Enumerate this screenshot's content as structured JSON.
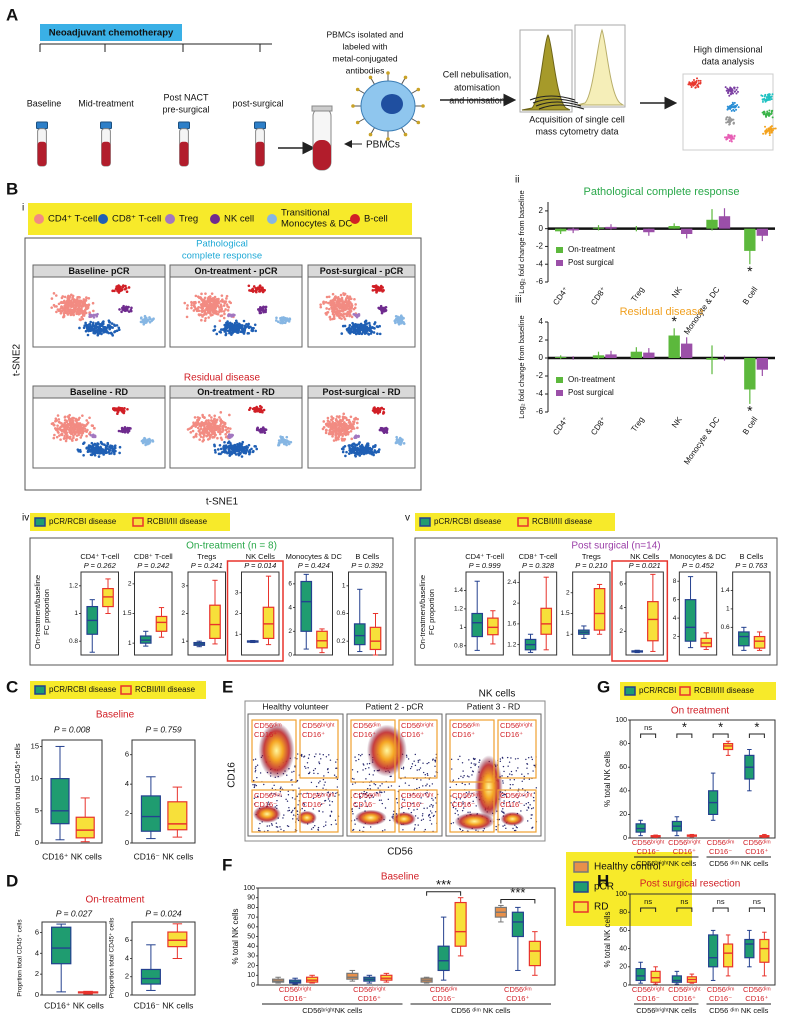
{
  "A": {
    "label": "A",
    "treatment": "Neoadjuvant chemotherapy",
    "timepoints": [
      "Baseline",
      "Mid-treatment",
      "post-surgical"
    ],
    "post_nact": [
      "Post NACT",
      "pre-surgical"
    ],
    "isolation": [
      "PBMCs isolated and",
      "labeled with",
      "metal-conjugated",
      "antibodies"
    ],
    "pbmcs": "PBMCs",
    "ionisation": [
      "Cell nebulisation,",
      "atomisation",
      "and ionisation"
    ],
    "acquisition": [
      "Acquisition of single cell",
      "mass cytometry data"
    ],
    "analysis": [
      "High dimensional",
      "data analysis"
    ]
  },
  "B": {
    "label": "B",
    "sub": "i",
    "legend": [
      {
        "name": "CD4⁺ T-cell",
        "color": "#f28b82"
      },
      {
        "name": "CD8⁺ T-cell",
        "color": "#1f5fb4"
      },
      {
        "name": "Treg",
        "color": "#a277c0"
      },
      {
        "name": "NK cell",
        "color": "#6f2b8e"
      },
      {
        "name": [
          "Transitional",
          "Monocytes & DC"
        ],
        "color": "#86b6e3"
      },
      {
        "name": "B-cell",
        "color": "#d11f26"
      }
    ],
    "pcr_heading": [
      "Pathological",
      "complete response"
    ],
    "pcr_plots": [
      "Baseline- pCR",
      "On-treatment - pCR",
      "Post-surgical - pCR"
    ],
    "rd_heading": "Residual disease",
    "rd_plots": [
      "Baseline  - RD",
      "On-treatment - RD",
      "Post-surgical - RD"
    ],
    "ylabel": "t-SNE2",
    "xlabel": "t-SNE1"
  },
  "B_ii": {
    "type": "bar",
    "label": "ii",
    "title": "Pathological complete response",
    "title_color": "#2aa84a",
    "ylabel": "Log₂ fold change from baseline",
    "categories": [
      "CD4⁺",
      "CD8⁺",
      "Treg",
      "NK",
      "Monocyte & DC",
      "B cell"
    ],
    "series": [
      {
        "name": "On-treatment",
        "color": "#5cb83c",
        "values": [
          -0.3,
          0.1,
          0,
          0.3,
          1,
          -2.5
        ],
        "errors": [
          0.3,
          0.3,
          0.3,
          0.3,
          1.2,
          1.5
        ]
      },
      {
        "name": "Post surgical",
        "color": "#9b4fa8",
        "values": [
          -0.2,
          0.2,
          -0.4,
          -0.6,
          1.4,
          -0.8
        ],
        "errors": [
          0.3,
          0.3,
          0.4,
          0.5,
          0.9,
          0.6
        ]
      }
    ],
    "ylim": [
      -6,
      3
    ],
    "yticks": [
      -6,
      -4,
      -2,
      0,
      2
    ],
    "annotations": [
      {
        "text": "*",
        "category": 5,
        "series": 0
      }
    ]
  },
  "B_iii": {
    "type": "bar",
    "label": "iii",
    "title": "Residual disease",
    "title_color": "#f0a020",
    "ylabel": "Log₂ fold change from baseline",
    "categories": [
      "CD4⁺",
      "CD8⁺",
      "Treg",
      "NK",
      "Monocyte & DC",
      "B cell"
    ],
    "series": [
      {
        "name": "On-treatment",
        "color": "#5cb83c",
        "values": [
          0.1,
          0.3,
          0.7,
          2.5,
          -0.2,
          -3.5
        ],
        "errors": [
          0.2,
          0.4,
          0.5,
          0.8,
          1.6,
          1.6
        ]
      },
      {
        "name": "Post surgical",
        "color": "#9b4fa8",
        "values": [
          0,
          0.4,
          0.6,
          1.6,
          0,
          -1.3
        ],
        "errors": [
          0.2,
          0.4,
          0.5,
          0.7,
          0.3,
          0.7
        ]
      }
    ],
    "ylim": [
      -6,
      4
    ],
    "yticks": [
      -6,
      -4,
      -2,
      0,
      2,
      4
    ],
    "annotations": [
      {
        "text": "*",
        "category": 3,
        "series": 0
      },
      {
        "text": "*",
        "category": 5,
        "series": 0
      }
    ]
  },
  "B_iv": {
    "label": "iv",
    "legend": [
      {
        "name": "pCR/RCBI disease",
        "color": "#1f9c70",
        "edge": "#24418f"
      },
      {
        "name": "RCBII/III disease",
        "color": "#f7e03a",
        "edge": "#e8332c"
      }
    ],
    "title": "On-treatment (n = 8)",
    "title_color": "#2aa84a",
    "ylabel": [
      "On-treatment/baseline",
      "FC proportion"
    ],
    "panels": [
      {
        "name": "CD4⁺ T-cell",
        "p": "P = 0.262",
        "ylim": [
          0.7,
          1.3
        ],
        "yticks": [
          0.8,
          1,
          1.2
        ],
        "boxes": [
          [
            0.72,
            0.85,
            0.95,
            1.05,
            1.1
          ],
          [
            1,
            1.05,
            1.12,
            1.18,
            1.25
          ]
        ]
      },
      {
        "name": "CD8⁺ T-cell",
        "p": "P = 0.242",
        "ylim": [
          0.8,
          2.2
        ],
        "yticks": [
          1,
          1.5,
          2
        ],
        "boxes": [
          [
            0.95,
            1,
            1.05,
            1.12,
            1.2
          ],
          [
            1.1,
            1.2,
            1.35,
            1.45,
            1.6
          ]
        ]
      },
      {
        "name": "Tregs",
        "p": "P = 0.241",
        "ylim": [
          0.5,
          3.5
        ],
        "yticks": [
          1,
          2,
          3
        ],
        "boxes": [
          [
            0.8,
            0.85,
            0.9,
            0.95,
            1
          ],
          [
            0.9,
            1.1,
            1.6,
            2.3,
            3.2
          ]
        ]
      },
      {
        "name": "NK Cells",
        "p": "P = 0.014",
        "highlight": true,
        "ylim": [
          0,
          4
        ],
        "yticks": [
          1,
          2,
          3
        ],
        "boxes": [
          [
            0.6,
            0.62,
            0.65,
            0.68,
            0.7
          ],
          [
            0.5,
            0.8,
            1.5,
            2.3,
            3.8
          ]
        ]
      },
      {
        "name": "Monocytes & DC",
        "p": "P = 0.424",
        "ylim": [
          0,
          7
        ],
        "yticks": [
          0,
          2,
          4,
          6
        ],
        "boxes": [
          [
            0.5,
            2,
            4.5,
            6.2,
            6.8
          ],
          [
            0.2,
            0.6,
            1.2,
            2,
            2.2
          ]
        ]
      },
      {
        "name": "B Cells",
        "p": "P = 0.392",
        "ylim": [
          0,
          1.2
        ],
        "yticks": [
          0.2,
          0.6,
          1
        ],
        "boxes": [
          [
            0.05,
            0.15,
            0.28,
            0.45,
            0.95
          ],
          [
            0,
            0.08,
            0.2,
            0.4,
            0.6
          ]
        ]
      }
    ]
  },
  "B_v": {
    "label": "v",
    "legend": [
      {
        "name": "pCR/RCBI disease",
        "color": "#1f9c70",
        "edge": "#24418f"
      },
      {
        "name": "RCBII/III disease",
        "color": "#f7e03a",
        "edge": "#e8332c"
      }
    ],
    "title": "Post surgical (n=14)",
    "title_color": "#9b3fa8",
    "ylabel": [
      "On-treatment/baseline",
      "FC proportion"
    ],
    "panels": [
      {
        "name": "CD4⁺ T-cell",
        "p": "P = 0.999",
        "ylim": [
          0.7,
          1.6
        ],
        "yticks": [
          0.8,
          1,
          1.2,
          1.4
        ],
        "boxes": [
          [
            0.75,
            0.9,
            1.05,
            1.15,
            1.5
          ],
          [
            0.82,
            0.92,
            1,
            1.1,
            1.18
          ]
        ]
      },
      {
        "name": "CD8⁺ T-cell",
        "p": "P = 0.328",
        "ylim": [
          1,
          2.6
        ],
        "yticks": [
          1.2,
          1.6,
          2,
          2.4
        ],
        "boxes": [
          [
            1.05,
            1.1,
            1.2,
            1.3,
            1.4
          ],
          [
            1.1,
            1.4,
            1.6,
            1.9,
            2.5
          ]
        ]
      },
      {
        "name": "Tregs",
        "p": "P = 0.210",
        "ylim": [
          0.5,
          2.5
        ],
        "yticks": [
          1,
          1.5,
          2
        ],
        "boxes": [
          [
            0.9,
            1,
            1.05,
            1.1,
            1.2
          ],
          [
            1,
            1.1,
            1.5,
            2.1,
            2.2
          ]
        ]
      },
      {
        "name": "NK Cells",
        "p": "P = 0.021",
        "highlight": true,
        "ylim": [
          0,
          7
        ],
        "yticks": [
          2,
          4,
          6
        ],
        "boxes": [
          [
            0.2,
            0.25,
            0.3,
            0.35,
            0.4
          ],
          [
            0.3,
            1.2,
            3,
            4.5,
            6.8
          ]
        ]
      },
      {
        "name": "Monocytes & DC",
        "p": "P = 0.452",
        "ylim": [
          0,
          9
        ],
        "yticks": [
          2,
          4,
          6,
          8
        ],
        "boxes": [
          [
            0.8,
            1.5,
            3,
            6,
            8.5
          ],
          [
            0.6,
            0.9,
            1.3,
            1.8,
            2.4
          ]
        ]
      },
      {
        "name": "B Cells",
        "p": "P = 0.763",
        "ylim": [
          0,
          1.8
        ],
        "yticks": [
          0.6,
          1,
          1.4
        ],
        "boxes": [
          [
            0.1,
            0.2,
            0.4,
            0.5,
            0.6
          ],
          [
            0.1,
            0.15,
            0.3,
            0.4,
            0.5
          ]
        ]
      }
    ]
  },
  "C": {
    "label": "C",
    "legend": [
      {
        "name": "pCR/RCBI disease",
        "color": "#1f9c70",
        "edge": "#24418f"
      },
      {
        "name": "RCBII/III disease",
        "color": "#f7e03a",
        "edge": "#e8332c"
      }
    ],
    "title": "Baseline",
    "ylabel": "Proportion total CD45⁺ cells",
    "panels": [
      {
        "name": "CD16⁺ NK cells",
        "p": "P = 0.008",
        "ylim": [
          0,
          16
        ],
        "yticks": [
          0,
          5,
          10,
          15
        ],
        "boxes": [
          [
            0.5,
            3,
            5,
            10,
            15
          ],
          [
            0.2,
            0.8,
            2,
            4,
            7
          ]
        ]
      },
      {
        "name": "CD16⁻ NK cells",
        "p": "P = 0.759",
        "ylim": [
          0,
          7
        ],
        "yticks": [
          0,
          2,
          4,
          6
        ],
        "boxes": [
          [
            0.3,
            0.8,
            1.8,
            3.2,
            4.5
          ],
          [
            0.4,
            0.9,
            1.3,
            2.8,
            3.8
          ]
        ]
      }
    ]
  },
  "D": {
    "label": "D",
    "title": "On-treatment",
    "panels": [
      {
        "name": "CD16⁺ NK cells",
        "ylabel": "Proprtion total CD45⁺ cells",
        "p": "P = 0.027",
        "ylim": [
          0,
          7
        ],
        "yticks": [
          0,
          2,
          4,
          6
        ],
        "boxes": [
          [
            0.3,
            3,
            4.5,
            6.5,
            6.8
          ],
          [
            0.1,
            0.2,
            0.25,
            0.3,
            0.35
          ]
        ]
      },
      {
        "name": "CD16⁻ NK cells",
        "ylabel": "Proportion total CD45⁺ cells",
        "p": "P = 0.024",
        "ylim": [
          0,
          8
        ],
        "yticks": [
          0,
          2,
          4,
          6
        ],
        "boxes": [
          [
            0.5,
            1.2,
            1.8,
            2.8,
            5.5
          ],
          [
            4,
            5.3,
            6,
            6.9,
            7.8
          ]
        ]
      }
    ]
  },
  "E": {
    "label": "E",
    "title": "NK cells",
    "columns": [
      "Healthy volunteer",
      "Patient 2 - pCR",
      "Patient 3 - RD"
    ],
    "ylabel": "CD16",
    "xlabel": "CD56",
    "gates": [
      [
        "CD56ᵈⁱᵐ",
        "CD16⁺"
      ],
      [
        "CD56ᵇʳⁱᵍʰᵗ",
        "CD16⁺"
      ],
      [
        "CD56ᵈⁱᵐ",
        "CD16⁻"
      ],
      [
        "CD56ᵇʳⁱᵍʰᵗ",
        "CD16⁻"
      ]
    ]
  },
  "F": {
    "label": "F",
    "title": "Baseline",
    "ylabel": "% total NK cells",
    "ylim": [
      0,
      100
    ],
    "yticks": [
      0,
      10,
      20,
      30,
      40,
      50,
      60,
      70,
      80,
      90,
      100
    ],
    "legend": [
      {
        "name": "Healthy control",
        "color": "#e8904a",
        "edge": "#777777"
      },
      {
        "name": "pCR",
        "color": "#1f9c70",
        "edge": "#24418f"
      },
      {
        "name": "RD",
        "color": "#f7e03a",
        "edge": "#e8332c"
      }
    ],
    "groups": [
      {
        "name": [
          "CD56ᵇʳⁱᵍʰᵗ",
          "CD16⁻"
        ],
        "boxes": [
          [
            2,
            3,
            4,
            6,
            8
          ],
          [
            1,
            2,
            3,
            5,
            7
          ],
          [
            2,
            3,
            5,
            8,
            10
          ]
        ]
      },
      {
        "name": [
          "CD56ᵇʳⁱᵍʰᵗ",
          "CD16⁺"
        ],
        "boxes": [
          [
            4,
            6,
            8,
            12,
            15
          ],
          [
            2,
            4,
            6,
            8,
            10
          ],
          [
            3,
            5,
            7,
            10,
            12
          ]
        ]
      },
      {
        "name": [
          "CD56ᵈⁱᵐ",
          "CD16⁻"
        ],
        "sig": "***",
        "boxes": [
          [
            2,
            3,
            5,
            7,
            8
          ],
          [
            5,
            15,
            25,
            40,
            70
          ],
          [
            30,
            40,
            55,
            85,
            90
          ]
        ]
      },
      {
        "name": [
          "CD56ᵈⁱᵐ",
          "CD16⁺"
        ],
        "sig": "***",
        "boxes": [
          [
            65,
            70,
            75,
            80,
            82
          ],
          [
            15,
            50,
            65,
            75,
            80
          ],
          [
            10,
            20,
            35,
            45,
            55
          ]
        ]
      }
    ],
    "supergroups": [
      "CD56ᵇʳⁱᵍʰᵗNK cells",
      "CD56 ᵈⁱᵐ NK cells"
    ]
  },
  "G": {
    "label": "G",
    "title": "On treatment",
    "ylabel": "% total NK cells",
    "ylim": [
      0,
      100
    ],
    "yticks": [
      0,
      20,
      40,
      60,
      80,
      100
    ],
    "legend": [
      {
        "name": "pCR/RCBI",
        "color": "#1f9c70",
        "edge": "#24418f"
      },
      {
        "name": "RCBII/III disease",
        "color": "#f7e03a",
        "edge": "#e8332c"
      }
    ],
    "groups": [
      {
        "name": [
          "CD56ᵇʳⁱᵍʰᵗ",
          "CD16⁻"
        ],
        "sig": "ns",
        "boxes": [
          [
            2,
            5,
            8,
            12,
            15
          ],
          [
            0.5,
            1,
            1.5,
            2,
            2.5
          ]
        ]
      },
      {
        "name": [
          "CD56ᵇʳⁱᵍʰᵗ",
          "CD16⁺"
        ],
        "sig": "*",
        "boxes": [
          [
            2,
            6,
            10,
            14,
            18
          ],
          [
            1,
            1.5,
            2,
            2.5,
            3
          ]
        ]
      },
      {
        "name": [
          "CD56ᵈⁱᵐ",
          "CD16⁻"
        ],
        "sig": "*",
        "boxes": [
          [
            15,
            20,
            30,
            40,
            55
          ],
          [
            70,
            75,
            78,
            80,
            82
          ]
        ]
      },
      {
        "name": [
          "CD56ᵈⁱᵐ",
          "CD16⁺"
        ],
        "sig": "*",
        "boxes": [
          [
            40,
            50,
            60,
            70,
            75
          ],
          [
            0.5,
            1,
            1.5,
            2,
            3
          ]
        ]
      }
    ],
    "supergroups": [
      "CD56ᵇʳⁱᵍʰᵗNK cells",
      "CD56 ᵈⁱᵐ NK cells"
    ]
  },
  "H": {
    "label": "H",
    "title": "Post surgical resection",
    "ylabel": "% total NK cells",
    "ylim": [
      0,
      100
    ],
    "yticks": [
      0,
      20,
      40,
      60,
      80,
      100
    ],
    "groups": [
      {
        "name": [
          "CD56ᵇʳⁱᵍʰᵗ",
          "CD16⁻"
        ],
        "sig": "ns",
        "boxes": [
          [
            2,
            5,
            10,
            18,
            25
          ],
          [
            1,
            3,
            8,
            15,
            20
          ]
        ]
      },
      {
        "name": [
          "CD56ᵇʳⁱᵍʰᵗ",
          "CD16⁺"
        ],
        "sig": "ns",
        "boxes": [
          [
            1,
            3,
            5,
            10,
            15
          ],
          [
            2,
            3,
            6,
            9,
            12
          ]
        ]
      },
      {
        "name": [
          "CD56ᵈⁱᵐ",
          "CD16⁻"
        ],
        "sig": "ns",
        "boxes": [
          [
            5,
            20,
            30,
            55,
            60
          ],
          [
            10,
            20,
            35,
            45,
            55
          ]
        ]
      },
      {
        "name": [
          "CD56ᵈⁱᵐ",
          "CD16⁺"
        ],
        "sig": "ns",
        "boxes": [
          [
            20,
            30,
            45,
            50,
            60
          ],
          [
            10,
            25,
            40,
            50,
            58
          ]
        ]
      }
    ],
    "supergroups": [
      "CD56ᵇʳⁱᵍʰᵗNK cells",
      "CD56 ᵈⁱᵐ NK cells"
    ]
  }
}
